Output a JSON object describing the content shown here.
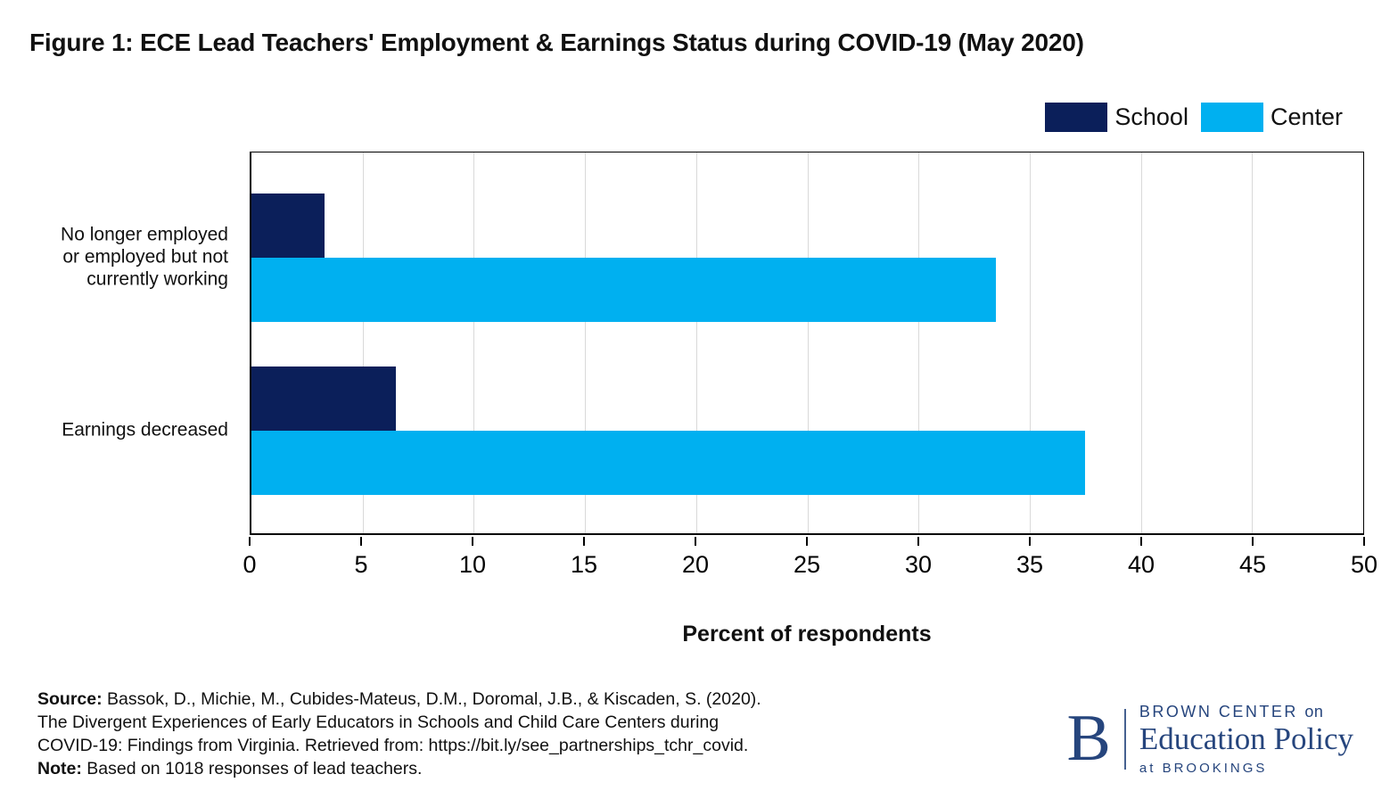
{
  "title": "Figure 1: ECE Lead Teachers' Employment & Earnings Status during COVID-19 (May 2020)",
  "chart_data": {
    "type": "bar",
    "orientation": "horizontal",
    "title": "Figure 1: ECE Lead Teachers' Employment & Earnings Status during COVID-19 (May 2020)",
    "categories": [
      "No longer employed\nor employed but not\ncurrently working",
      "Earnings decreased"
    ],
    "series": [
      {
        "name": "School",
        "color": "#0b1f5a",
        "values": [
          3.3,
          6.5
        ]
      },
      {
        "name": "Center",
        "color": "#00b0f0",
        "values": [
          33.5,
          37.5
        ]
      }
    ],
    "xlabel": "Percent of respondents",
    "ylabel": "",
    "xlim": [
      0,
      50
    ],
    "xticks": [
      0,
      5,
      10,
      15,
      20,
      25,
      30,
      35,
      40,
      45,
      50
    ],
    "grid": true,
    "gridline_color": "#d9d9d9",
    "legend_position": "top-right"
  },
  "footer": {
    "lines": [
      {
        "bold": "Source:",
        "text": " Bassok, D., Michie, M., Cubides-Mateus, D.M., Doromal, J.B., & Kiscaden, S. (2020)."
      },
      {
        "bold": "",
        "text": "The Divergent Experiences of Early Educators in Schools and Child Care Centers during"
      },
      {
        "bold": "",
        "text": "COVID-19: Findings from Virginia. Retrieved from: https://bit.ly/see_partnerships_tchr_covid."
      },
      {
        "bold": "Note:",
        "text": " Based on 1018 responses of lead teachers."
      }
    ]
  },
  "logo": {
    "letter": "B",
    "line1_caps": "BROWN CENTER",
    "line1_small": "on",
    "line2": "Education Policy",
    "line3": "at BROOKINGS",
    "color": "#26457D"
  }
}
